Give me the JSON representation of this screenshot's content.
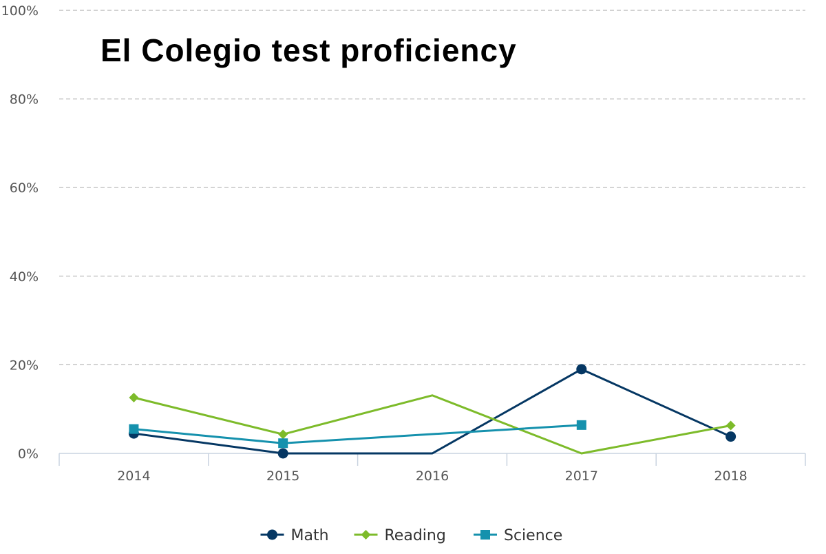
{
  "chart_data": {
    "type": "line",
    "title": "El Colegio test proficiency",
    "categories": [
      "2014",
      "2015",
      "2016",
      "2017",
      "2018"
    ],
    "y_ticks": [
      "0%",
      "20%",
      "40%",
      "60%",
      "80%",
      "100%"
    ],
    "ylim": [
      0,
      100
    ],
    "grid": true,
    "legend_position": "bottom",
    "series": [
      {
        "name": "Math",
        "color": "#053763",
        "marker": "circle",
        "values": [
          4.5,
          0,
          0,
          19,
          3.8
        ]
      },
      {
        "name": "Reading",
        "color": "#7dbb2a",
        "marker": "diamond",
        "values": [
          12.6,
          4.3,
          13.1,
          0,
          6.3
        ]
      },
      {
        "name": "Science",
        "color": "#1591ad",
        "marker": "square",
        "values": [
          5.5,
          2.3,
          null,
          6.4,
          null
        ]
      }
    ]
  }
}
